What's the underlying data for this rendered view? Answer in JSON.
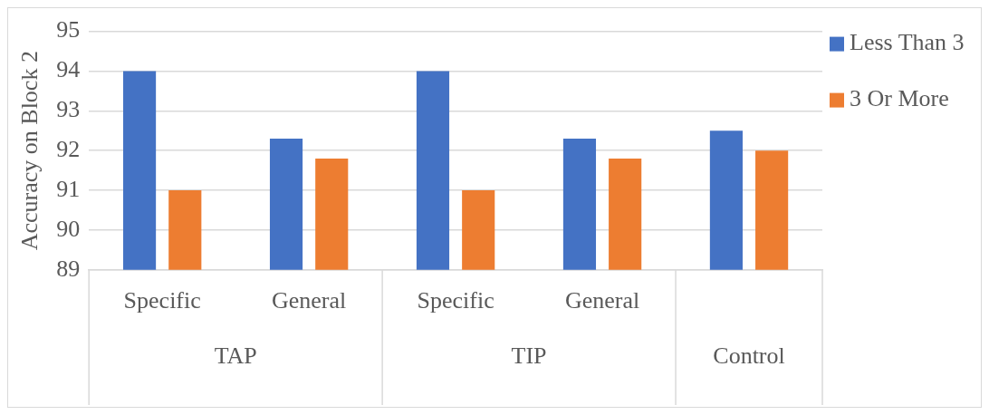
{
  "chart_data": {
    "type": "bar",
    "ylabel": "Accuracy on Block 2",
    "categories": [
      "Specific",
      "General",
      "Specific",
      "General",
      null
    ],
    "annotations": [
      "TAP",
      "TIP",
      "Control"
    ],
    "series": [
      {
        "name": "Less Than 3",
        "color": "#4472c4",
        "values": [
          94,
          92.3,
          94,
          92.3,
          92.5
        ]
      },
      {
        "name": "3 Or More",
        "color": "#ed7d31",
        "values": [
          91,
          91.8,
          91,
          91.8,
          92
        ]
      }
    ],
    "ylim": [
      89,
      95
    ],
    "yticks": [
      89,
      90,
      91,
      92,
      93,
      94,
      95
    ],
    "grid": "y",
    "legend": "top right"
  }
}
